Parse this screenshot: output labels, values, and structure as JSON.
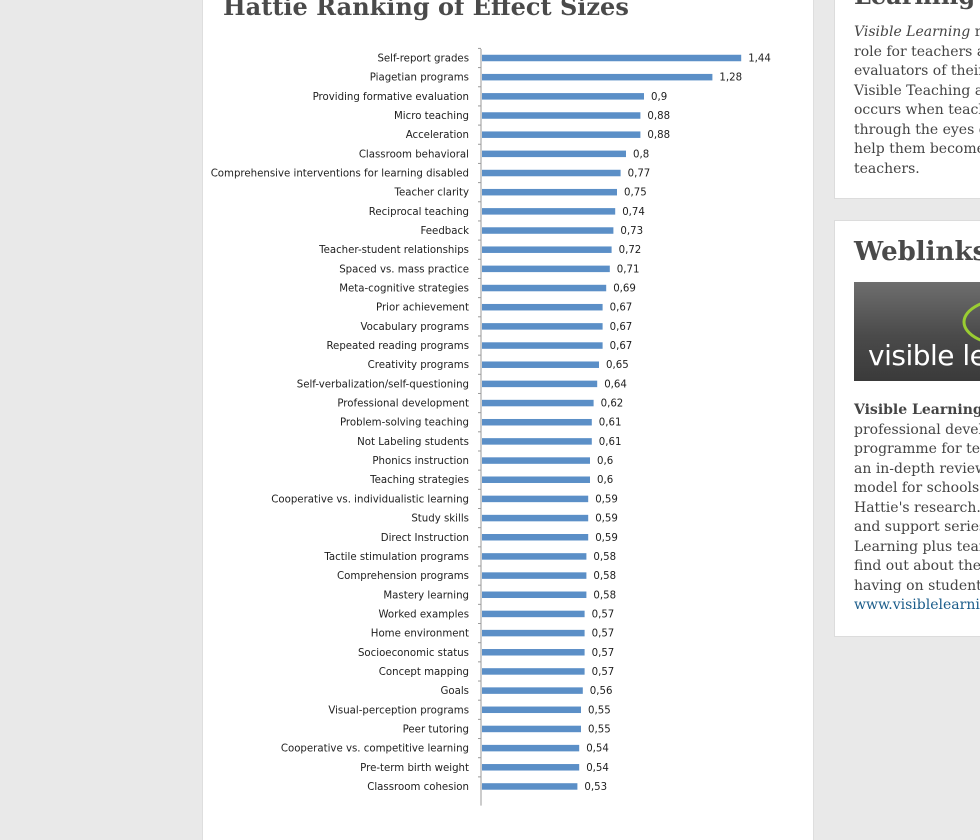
{
  "main": {
    "title": "Hattie Ranking of Effect Sizes"
  },
  "chart_data": {
    "type": "bar",
    "orientation": "horizontal",
    "categories": [
      "Self-report grades",
      "Piagetian programs",
      "Providing formative evaluation",
      "Micro teaching",
      "Acceleration",
      "Classroom behavioral",
      "Comprehensive interventions for learning disabled",
      "Teacher clarity",
      "Reciprocal teaching",
      "Feedback",
      "Teacher-student relationships",
      "Spaced vs. mass practice",
      "Meta-cognitive strategies",
      "Prior achievement",
      "Vocabulary programs",
      "Repeated reading programs",
      "Creativity programs",
      "Self-verbalization/self-questioning",
      "Professional development",
      "Problem-solving teaching",
      "Not Labeling students",
      "Phonics instruction",
      "Teaching strategies",
      "Cooperative vs. individualistic learning",
      "Study skills",
      "Direct Instruction",
      "Tactile stimulation programs",
      "Comprehension programs",
      "Mastery learning",
      "Worked examples",
      "Home environment",
      "Socioeconomic status",
      "Concept mapping",
      "Goals",
      "Visual-perception programs",
      "Peer tutoring",
      "Cooperative vs. competitive learning",
      "Pre-term birth weight",
      "Classroom cohesion"
    ],
    "values": [
      1.44,
      1.28,
      0.9,
      0.88,
      0.88,
      0.8,
      0.77,
      0.75,
      0.74,
      0.73,
      0.72,
      0.71,
      0.69,
      0.67,
      0.67,
      0.67,
      0.65,
      0.64,
      0.62,
      0.61,
      0.61,
      0.6,
      0.6,
      0.59,
      0.59,
      0.59,
      0.58,
      0.58,
      0.58,
      0.57,
      0.57,
      0.57,
      0.57,
      0.56,
      0.55,
      0.55,
      0.54,
      0.54,
      0.53
    ],
    "value_labels": [
      "1,44",
      "1,28",
      "0,9",
      "0,88",
      "0,88",
      "0,8",
      "0,77",
      "0,75",
      "0,74",
      "0,73",
      "0,72",
      "0,71",
      "0,69",
      "0,67",
      "0,67",
      "0,67",
      "0,65",
      "0,64",
      "0,62",
      "0,61",
      "0,61",
      "0,6",
      "0,6",
      "0,59",
      "0,59",
      "0,59",
      "0,58",
      "0,58",
      "0,58",
      "0,57",
      "0,57",
      "0,57",
      "0,57",
      "0,56",
      "0,55",
      "0,55",
      "0,54",
      "0,54",
      "0,53"
    ],
    "bar_color": "#5b8fc7",
    "grid": false
  },
  "sidebar": {
    "box1": {
      "heading": "Learning",
      "lines": [
        {
          "em": "Visible Learning",
          "rest": " me"
        },
        {
          "text": "role for teachers as"
        },
        {
          "text": "evaluators of their"
        },
        {
          "text": "Visible Teaching ar"
        },
        {
          "text": "occurs when teache"
        },
        {
          "text": "through the eyes of"
        },
        {
          "text": "help them become t"
        },
        {
          "text": "teachers."
        }
      ]
    },
    "box2": {
      "heading": "Weblinks",
      "banner_text": "visible lea",
      "lines": [
        {
          "strong": "Visible Learning p"
        },
        {
          "text": "professional develo"
        },
        {
          "text": "programme for tea"
        },
        {
          "text": "an in-depth review"
        },
        {
          "text": "model for schools b"
        },
        {
          "text": "Hattie's research. W"
        },
        {
          "text": "and support series"
        },
        {
          "text": "Learning plus team"
        },
        {
          "text": "find out about the i"
        },
        {
          "text": "having on student a"
        },
        {
          "link": "www.visiblelearnin"
        }
      ]
    }
  },
  "colors": {
    "page_background": "#e9e9e9",
    "heading": "#4a4a4a",
    "link": "#1a5c8a"
  }
}
